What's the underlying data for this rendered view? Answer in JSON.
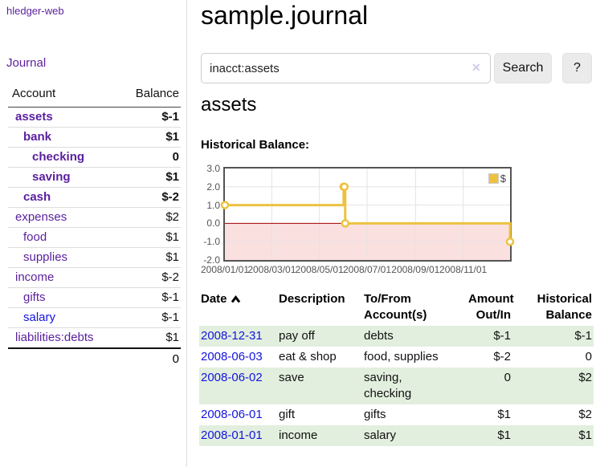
{
  "sidebar": {
    "brand": "hledger-web",
    "nav": {
      "journal": "Journal"
    },
    "table_headers": {
      "account": "Account",
      "balance": "Balance"
    },
    "accounts": [
      {
        "name": "assets",
        "balance": "$-1",
        "level": 0,
        "strong": true,
        "negative": true,
        "unvisited": false
      },
      {
        "name": "bank",
        "balance": "$1",
        "level": 1,
        "strong": true,
        "negative": false,
        "unvisited": false
      },
      {
        "name": "checking",
        "balance": "0",
        "level": 2,
        "strong": true,
        "negative": false,
        "unvisited": false
      },
      {
        "name": "saving",
        "balance": "$1",
        "level": 2,
        "strong": true,
        "negative": false,
        "unvisited": false
      },
      {
        "name": "cash",
        "balance": "$-2",
        "level": 1,
        "strong": true,
        "negative": true,
        "unvisited": false
      },
      {
        "name": "expenses",
        "balance": "$2",
        "level": 0,
        "strong": false,
        "negative": false,
        "unvisited": false
      },
      {
        "name": "food",
        "balance": "$1",
        "level": 1,
        "strong": false,
        "negative": false,
        "unvisited": false
      },
      {
        "name": "supplies",
        "balance": "$1",
        "level": 1,
        "strong": false,
        "negative": false,
        "unvisited": false
      },
      {
        "name": "income",
        "balance": "$-2",
        "level": 0,
        "strong": false,
        "negative": true,
        "unvisited": false
      },
      {
        "name": "gifts",
        "balance": "$-1",
        "level": 1,
        "strong": false,
        "negative": true,
        "unvisited": false
      },
      {
        "name": "salary",
        "balance": "$-1",
        "level": 1,
        "strong": false,
        "negative": true,
        "unvisited": true
      },
      {
        "name": "liabilities:debts",
        "balance": "$1",
        "level": 0,
        "strong": false,
        "negative": false,
        "unvisited": false
      }
    ],
    "total": "0"
  },
  "main": {
    "title": "sample.journal",
    "search": {
      "value": "inacct:assets",
      "clear_icon": "✕",
      "button_label": "Search",
      "help_label": "?"
    },
    "heading": "assets",
    "chart_label": "Historical Balance:",
    "transactions": {
      "headers": [
        "Date",
        "Description",
        "To/From Account(s)",
        "Amount Out/In",
        "Historical Balance"
      ],
      "sort": "ascending",
      "rows": [
        {
          "date": "2008-12-31",
          "description": "pay off",
          "accounts": "debts",
          "amount": "$-1",
          "balance": "$-1"
        },
        {
          "date": "2008-06-03",
          "description": "eat & shop",
          "accounts": "food, supplies",
          "amount": "$-2",
          "balance": "0"
        },
        {
          "date": "2008-06-02",
          "description": "save",
          "accounts": "saving,\nchecking",
          "amount": "0",
          "balance": "$2"
        },
        {
          "date": "2008-06-01",
          "description": "gift",
          "accounts": "gifts",
          "amount": "$1",
          "balance": "$2"
        },
        {
          "date": "2008-01-01",
          "description": "income",
          "accounts": "salary",
          "amount": "$1",
          "balance": "$1"
        }
      ]
    }
  },
  "chart_data": {
    "type": "line",
    "title": "Historical Balance:",
    "step": true,
    "legend": "$",
    "legend_position": "top-right",
    "grid": true,
    "x_range": [
      "2008-01-01",
      "2008-12-31"
    ],
    "y_range": [
      -2,
      3
    ],
    "y_ticks": [
      3.0,
      2.0,
      1.0,
      0.0,
      -1.0,
      -2.0
    ],
    "y_tick_labels": [
      "3.0",
      "2.0",
      "1.0",
      "0.0",
      "-1.0",
      "-2.0"
    ],
    "x_ticks": [
      {
        "date": "2008-01-01",
        "label": "2008/01/01"
      },
      {
        "date": "2008-03-01",
        "label": "2008/03/01"
      },
      {
        "date": "2008-05-01",
        "label": "2008/05/01"
      },
      {
        "date": "2008-07-01",
        "label": "2008/07/01"
      },
      {
        "date": "2008-09-01",
        "label": "2008/09/01"
      },
      {
        "date": "2008-11-01",
        "label": "2008/11/01"
      }
    ],
    "series": [
      {
        "name": "$",
        "color": "#edc240",
        "points": [
          [
            "2008-01-01",
            1
          ],
          [
            "2008-06-01",
            2
          ],
          [
            "2008-06-02",
            2
          ],
          [
            "2008-06-03",
            0
          ],
          [
            "2008-12-31",
            -1
          ]
        ]
      }
    ]
  },
  "colors": {
    "link_visited": "#5a1f9d",
    "link": "#1414dd",
    "negative_strong": "#8c1717",
    "negative_soft": "#c0686c",
    "series_gold": "#edc240",
    "negative_region_fill": "#fbe0e0",
    "zero_line": "#a00000",
    "grid_line": "#e3e3e3",
    "chart_border": "#545454",
    "row_stripe_green": "#e2efde"
  }
}
